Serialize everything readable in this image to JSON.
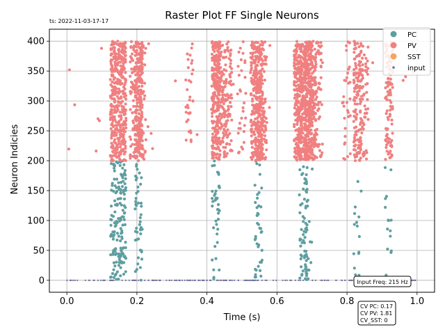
{
  "timestamp": "ts: 2022-11-03-17-17",
  "chart_data": {
    "type": "scatter",
    "title": "Raster Plot FF Single Neurons",
    "xlabel": "Time (s)",
    "ylabel": "Neuron Indicies",
    "xlim": [
      -0.05,
      1.05
    ],
    "ylim": [
      -20,
      420
    ],
    "xticks": [
      0.0,
      0.2,
      0.4,
      0.6,
      0.8,
      1.0
    ],
    "xtick_labels": [
      "0.0",
      "0.2",
      "0.4",
      "0.6",
      "0.8",
      "1.0"
    ],
    "yticks": [
      0,
      50,
      100,
      150,
      200,
      250,
      300,
      350,
      400
    ],
    "ytick_labels": [
      "0",
      "50",
      "100",
      "150",
      "200",
      "250",
      "300",
      "350",
      "400"
    ],
    "grid": true,
    "legend_position": "top-right",
    "series": [
      {
        "name": "PC",
        "color": "#5f9ea0",
        "neuron_range": [
          0,
          200
        ],
        "burst_times": [
          0.135,
          0.158,
          0.205,
          0.425,
          0.548,
          0.675,
          0.69,
          0.83,
          0.92
        ]
      },
      {
        "name": "PV",
        "color": "#f08080",
        "neuron_range": [
          200,
          400
        ],
        "burst_times": [
          0.135,
          0.158,
          0.19,
          0.205,
          0.215,
          0.35,
          0.425,
          0.44,
          0.46,
          0.5,
          0.535,
          0.548,
          0.56,
          0.66,
          0.675,
          0.69,
          0.7,
          0.72,
          0.8,
          0.83,
          0.85,
          0.92
        ]
      },
      {
        "name": "SST",
        "color": "#f4a460",
        "neuron_range": [
          0,
          0
        ],
        "burst_times": []
      },
      {
        "name": "input",
        "color": "#6c6c9a",
        "neuron_range": [
          0,
          0
        ],
        "burst_times": []
      }
    ],
    "annotations": {
      "input_freq": "Input Freq: 215 Hz",
      "cv_lines": [
        "CV PC: 0.17",
        "CV PV: 1.81",
        "CV_SST: 0"
      ]
    }
  }
}
